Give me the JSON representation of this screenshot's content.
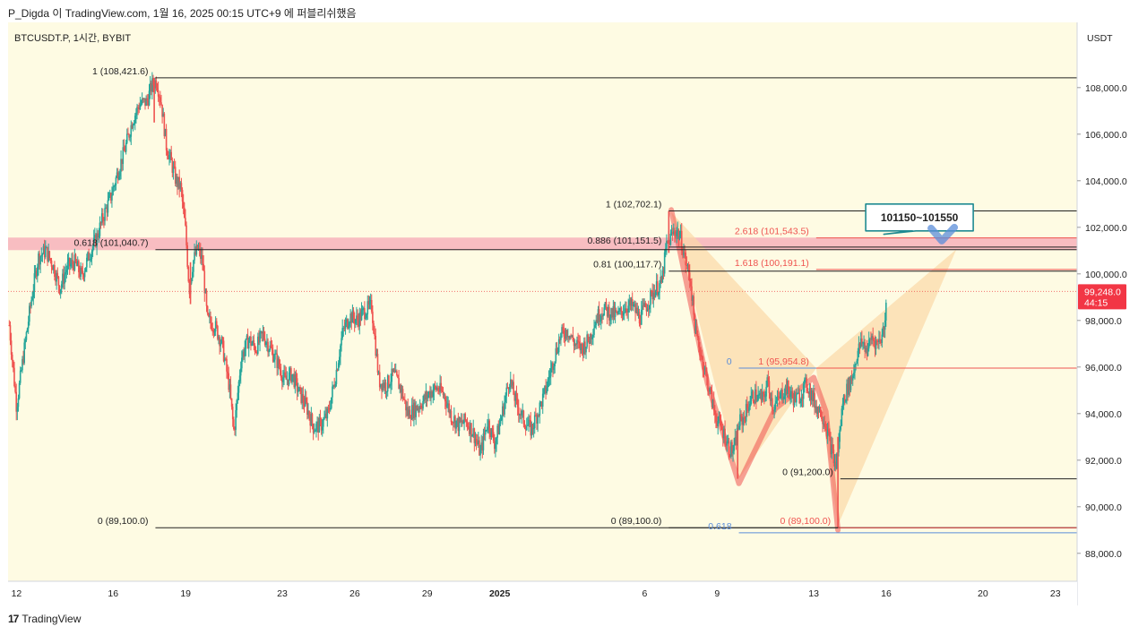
{
  "header": {
    "text": "P_Digda 이 TradingView.com, 1월 16, 2025 00:15 UTC+9 에 퍼블리쉬했음"
  },
  "symbol": {
    "text": "BTCUSDT.P, 1시간, BYBIT"
  },
  "footer": {
    "mark": "17",
    "brand": "TradingView"
  },
  "colors": {
    "background": "#fefbe3",
    "up": "#26a69a",
    "down": "#ef5350",
    "fib_line": "#222222",
    "blue_line": "#5b8dd9",
    "pattern_fill": "#fbd8a6",
    "zone_fill": "#f5a8b5",
    "callout_border": "#1f8a91",
    "price_badge": "#f23645"
  },
  "chart_data": {
    "type": "candlestick",
    "y_axis": {
      "unit": "USDT",
      "range": [
        86800,
        110800
      ],
      "ticks": [
        "88,000.0",
        "90,000.0",
        "92,000.0",
        "94,000.0",
        "96,000.0",
        "98,000.0",
        "100,000.0",
        "102,000.0",
        "104,000.0",
        "106,000.0",
        "108,000.0"
      ]
    },
    "x_axis": {
      "ticks": [
        {
          "label": "12",
          "day": 0
        },
        {
          "label": "16",
          "day": 4
        },
        {
          "label": "19",
          "day": 7
        },
        {
          "label": "23",
          "day": 11
        },
        {
          "label": "26",
          "day": 14
        },
        {
          "label": "29",
          "day": 17
        },
        {
          "label": "2025",
          "day": 20
        },
        {
          "label": "6",
          "day": 26
        },
        {
          "label": "9",
          "day": 29
        },
        {
          "label": "13",
          "day": 33
        },
        {
          "label": "16",
          "day": 36
        },
        {
          "label": "20",
          "day": 40
        },
        {
          "label": "23",
          "day": 43
        }
      ],
      "range": [
        -0.35,
        43.9
      ]
    },
    "current_price": {
      "value": 99248,
      "label": "99,248.0",
      "countdown": "44:15"
    },
    "price_path": [
      [
        -0.3,
        97800
      ],
      [
        0.0,
        94300
      ],
      [
        0.3,
        96600
      ],
      [
        0.6,
        98800
      ],
      [
        0.9,
        100700
      ],
      [
        1.2,
        101000
      ],
      [
        1.5,
        100400
      ],
      [
        1.8,
        99400
      ],
      [
        2.1,
        100300
      ],
      [
        2.4,
        100500
      ],
      [
        2.7,
        99900
      ],
      [
        3.0,
        100800
      ],
      [
        3.3,
        101500
      ],
      [
        3.6,
        102500
      ],
      [
        3.9,
        103300
      ],
      [
        4.2,
        104400
      ],
      [
        4.5,
        105400
      ],
      [
        4.8,
        106600
      ],
      [
        5.1,
        107300
      ],
      [
        5.4,
        107400
      ],
      [
        5.6,
        108100
      ],
      [
        5.8,
        108300
      ],
      [
        6.0,
        107300
      ],
      [
        6.2,
        105500
      ],
      [
        6.4,
        104800
      ],
      [
        6.6,
        104000
      ],
      [
        6.8,
        103700
      ],
      [
        7.0,
        101800
      ],
      [
        7.15,
        99300
      ],
      [
        7.3,
        100500
      ],
      [
        7.5,
        101100
      ],
      [
        7.7,
        100500
      ],
      [
        7.9,
        98000
      ],
      [
        8.2,
        97800
      ],
      [
        8.5,
        97000
      ],
      [
        8.8,
        95200
      ],
      [
        9.0,
        93200
      ],
      [
        9.3,
        96400
      ],
      [
        9.6,
        97200
      ],
      [
        9.9,
        96800
      ],
      [
        10.2,
        97400
      ],
      [
        10.5,
        96800
      ],
      [
        10.8,
        96200
      ],
      [
        11.1,
        95400
      ],
      [
        11.4,
        95700
      ],
      [
        11.7,
        94900
      ],
      [
        12.0,
        94300
      ],
      [
        12.3,
        93400
      ],
      [
        12.6,
        93500
      ],
      [
        12.9,
        94000
      ],
      [
        13.2,
        95600
      ],
      [
        13.5,
        97500
      ],
      [
        13.8,
        98200
      ],
      [
        14.1,
        98000
      ],
      [
        14.4,
        98400
      ],
      [
        14.7,
        98600
      ],
      [
        15.0,
        95400
      ],
      [
        15.3,
        95200
      ],
      [
        15.6,
        95700
      ],
      [
        15.9,
        95100
      ],
      [
        16.2,
        94000
      ],
      [
        16.5,
        94200
      ],
      [
        16.8,
        94500
      ],
      [
        17.1,
        94900
      ],
      [
        17.4,
        95100
      ],
      [
        17.7,
        94800
      ],
      [
        18.0,
        93900
      ],
      [
        18.3,
        93500
      ],
      [
        18.6,
        93700
      ],
      [
        18.9,
        93200
      ],
      [
        19.2,
        92300
      ],
      [
        19.5,
        93700
      ],
      [
        19.8,
        92700
      ],
      [
        20.1,
        94000
      ],
      [
        20.4,
        95500
      ],
      [
        20.7,
        94400
      ],
      [
        21.0,
        93700
      ],
      [
        21.3,
        93300
      ],
      [
        21.6,
        94100
      ],
      [
        21.9,
        95000
      ],
      [
        22.2,
        96200
      ],
      [
        22.5,
        97300
      ],
      [
        22.8,
        97600
      ],
      [
        23.1,
        97000
      ],
      [
        23.4,
        96800
      ],
      [
        23.7,
        97200
      ],
      [
        24.0,
        98100
      ],
      [
        24.3,
        98500
      ],
      [
        24.6,
        98300
      ],
      [
        24.9,
        98200
      ],
      [
        25.2,
        98600
      ],
      [
        25.5,
        98600
      ],
      [
        25.8,
        98100
      ],
      [
        26.1,
        98700
      ],
      [
        26.4,
        99300
      ],
      [
        26.7,
        99600
      ],
      [
        26.9,
        101200
      ],
      [
        27.1,
        101600
      ],
      [
        27.3,
        101900
      ],
      [
        27.5,
        101500
      ],
      [
        27.7,
        100500
      ],
      [
        27.9,
        99700
      ],
      [
        28.1,
        97500
      ],
      [
        28.3,
        96700
      ],
      [
        28.5,
        95800
      ],
      [
        28.7,
        94900
      ],
      [
        28.9,
        94000
      ],
      [
        29.1,
        93500
      ],
      [
        29.3,
        93100
      ],
      [
        29.5,
        92500
      ],
      [
        29.7,
        92400
      ],
      [
        29.9,
        93600
      ],
      [
        30.1,
        93800
      ],
      [
        30.3,
        94400
      ],
      [
        30.5,
        94800
      ],
      [
        30.7,
        94700
      ],
      [
        30.9,
        94600
      ],
      [
        31.1,
        95400
      ],
      [
        31.3,
        94300
      ],
      [
        31.5,
        94500
      ],
      [
        31.7,
        94900
      ],
      [
        31.9,
        95100
      ],
      [
        32.1,
        94700
      ],
      [
        32.3,
        94600
      ],
      [
        32.5,
        94900
      ],
      [
        32.7,
        95300
      ],
      [
        32.9,
        94800
      ],
      [
        33.1,
        94300
      ],
      [
        33.3,
        94100
      ],
      [
        33.5,
        93500
      ],
      [
        33.7,
        92600
      ],
      [
        33.9,
        91700
      ],
      [
        34.05,
        92900
      ],
      [
        34.2,
        94500
      ],
      [
        34.4,
        95100
      ],
      [
        34.6,
        95600
      ],
      [
        34.8,
        96600
      ],
      [
        35.0,
        97100
      ],
      [
        35.2,
        96700
      ],
      [
        35.4,
        97300
      ],
      [
        35.6,
        97000
      ],
      [
        35.8,
        97300
      ],
      [
        35.95,
        97900
      ],
      [
        36.0,
        99248
      ]
    ],
    "wicks": [
      {
        "day": 5.7,
        "high": 108421.6,
        "low": 106500
      },
      {
        "day": 27.0,
        "high": 102702.1,
        "low": 100900
      },
      {
        "day": 29.85,
        "high": 93300,
        "low": 91200
      },
      {
        "day": 34.0,
        "high": 93000,
        "low": 89100
      },
      {
        "day": 7.2,
        "high": 100500,
        "low": 98700
      }
    ],
    "hlines": [
      {
        "label": "1 (108,421.6)",
        "price": 108421.6,
        "x1": 5.75,
        "x2": 43.9,
        "color": "fib_line"
      },
      {
        "label": "0.618 (101,040.7)",
        "price": 101040.7,
        "x1": 5.75,
        "x2": 43.9,
        "color": "fib_line"
      },
      {
        "label": "0 (89,100.0)",
        "price": 89100,
        "x1": 5.75,
        "x2": 43.9,
        "color": "fib_line"
      },
      {
        "label": "1 (102,702.1)",
        "price": 102702.1,
        "x1": 27.0,
        "x2": 43.9,
        "color": "fib_line"
      },
      {
        "label": "0.886 (101,151.5)",
        "price": 101151.5,
        "x1": 27.0,
        "x2": 43.9,
        "color": "fib_line"
      },
      {
        "label": "0.81 (100,117.7)",
        "price": 100117.7,
        "x1": 27.0,
        "x2": 43.9,
        "color": "fib_line"
      },
      {
        "label": "0 (89,100.0)",
        "price": 89100,
        "x1": 27.0,
        "x2": 43.9,
        "color": "fib_line"
      },
      {
        "label": "0 (91,200.0)",
        "price": 91200,
        "x1": 34.1,
        "x2": 43.9,
        "color": "fib_line"
      },
      {
        "label": "1 (95,954.8)",
        "price": 95954.8,
        "x1": 29.9,
        "x2": 43.9,
        "color": "down"
      },
      {
        "label": "1.618 (100,191.1)",
        "price": 100191.1,
        "x1": 33.1,
        "x2": 43.9,
        "color": "down"
      },
      {
        "label": "2.618 (101,543.5)",
        "price": 101543.5,
        "x1": 33.1,
        "x2": 43.9,
        "color": "down"
      },
      {
        "label": "0 (89,100.0)",
        "price": 89100,
        "x1": 34.0,
        "x2": 43.9,
        "color": "down"
      },
      {
        "label": "0",
        "price": 95954.8,
        "x1": 29.9,
        "x2": 33.1,
        "color": "blue_line"
      },
      {
        "label": "0.618",
        "price": 88880,
        "x1": 29.9,
        "x2": 43.9,
        "color": "blue_line"
      }
    ],
    "zone": {
      "from": 101020,
      "to": 101560
    },
    "pattern": {
      "triangle_left": [
        [
          27.1,
          102650
        ],
        [
          29.9,
          91200
        ],
        [
          33.1,
          95950
        ]
      ],
      "triangle_right": [
        [
          33.1,
          95950
        ],
        [
          34.0,
          89200
        ],
        [
          38.9,
          101050
        ]
      ],
      "stroke": [
        [
          27.1,
          102750
        ],
        [
          28.6,
          95300
        ],
        [
          29.9,
          91000
        ],
        [
          31.4,
          94200
        ],
        [
          33.0,
          95550
        ],
        [
          33.5,
          94100
        ],
        [
          34.0,
          89000
        ]
      ]
    },
    "callout": {
      "text": "101150~101550",
      "anchor": [
        35.9,
        101700
      ],
      "box_day": 35.15,
      "box_price": 103000
    },
    "check_mark": {
      "day": 38.3,
      "price": 101650
    }
  }
}
